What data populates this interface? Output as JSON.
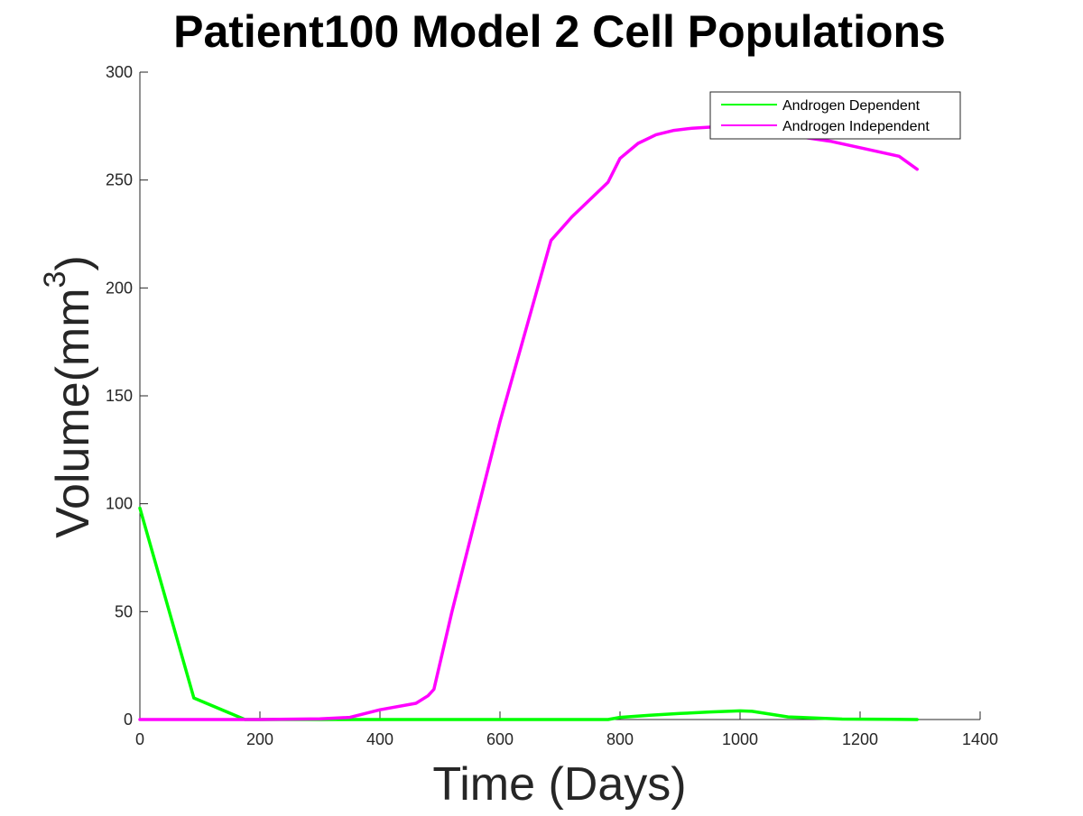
{
  "chart_data": {
    "type": "line",
    "title": "Patient100 Model 2 Cell Populations",
    "xlabel": "Time (Days)",
    "ylabel": "Volume(mm",
    "ylabel_superscript": "3",
    "ylabel_suffix": ")",
    "xlim": [
      0,
      1400
    ],
    "ylim": [
      0,
      300
    ],
    "xticks": [
      0,
      200,
      400,
      600,
      800,
      1000,
      1200,
      1400
    ],
    "yticks": [
      0,
      50,
      100,
      150,
      200,
      250,
      300
    ],
    "xtick_labels": [
      "0",
      "200",
      "400",
      "600",
      "800",
      "1000",
      "1200",
      "1400"
    ],
    "ytick_labels": [
      "0",
      "50",
      "100",
      "150",
      "200",
      "250",
      "300"
    ],
    "grid": false,
    "legend_position": "top-right",
    "series": [
      {
        "name": "Androgen Dependent",
        "color": "#00ff00",
        "x": [
          0,
          90,
          175,
          200,
          300,
          400,
          500,
          600,
          700,
          780,
          800,
          850,
          900,
          950,
          1000,
          1020,
          1080,
          1170,
          1250,
          1295
        ],
        "y": [
          98,
          10,
          0,
          0,
          0,
          0,
          0,
          0,
          0,
          0,
          1,
          2,
          2.8,
          3.5,
          4,
          3.8,
          1.2,
          0.2,
          0.1,
          0
        ]
      },
      {
        "name": "Androgen Independent",
        "color": "#ff00ff",
        "x": [
          0,
          100,
          200,
          300,
          350,
          400,
          460,
          480,
          490,
          520,
          600,
          685,
          720,
          780,
          800,
          830,
          860,
          890,
          920,
          950,
          980,
          1000,
          1020,
          1050,
          1100,
          1150,
          1200,
          1265,
          1295
        ],
        "y": [
          0,
          0,
          0,
          0.3,
          1,
          4.5,
          7.5,
          11,
          14,
          50,
          138,
          222,
          233,
          249,
          260,
          267,
          271,
          273,
          274,
          274.5,
          274.8,
          274.8,
          274.5,
          273,
          270,
          268,
          265,
          261,
          255
        ]
      }
    ]
  }
}
